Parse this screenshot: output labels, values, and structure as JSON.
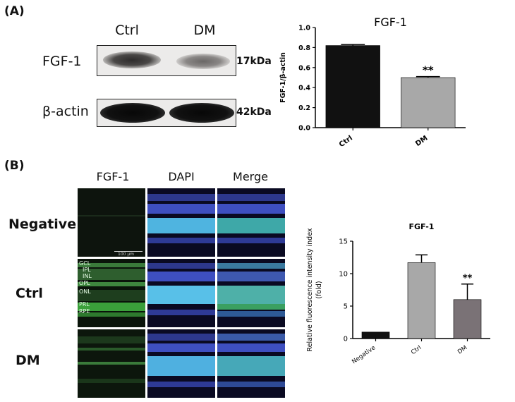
{
  "panel_a_label": "(A)",
  "panel_b_label": "(B)",
  "western_blot": {
    "lane_labels": [
      "Ctrl",
      "DM"
    ],
    "rows": [
      {
        "label": "FGF-1",
        "size": "17kDa"
      },
      {
        "label": "β-actin",
        "size": "42kDa"
      }
    ]
  },
  "immunofluorescence": {
    "column_headers": [
      "FGF-1",
      "DAPI",
      "Merge"
    ],
    "row_labels": [
      "Negative",
      "Ctrl",
      "DM"
    ],
    "scale_bar": "100 μm",
    "layer_labels": [
      "GCL",
      "IPL",
      "INL",
      "OPL",
      "ONL",
      "PRL",
      "RPE"
    ]
  },
  "chart_data": [
    {
      "type": "bar",
      "title": "FGF-1",
      "ylabel": "FGF-1/β-actin",
      "categories": [
        "Ctrl",
        "DM"
      ],
      "values": [
        0.82,
        0.5
      ],
      "errors": [
        0.01,
        0.01
      ],
      "colors": [
        "#111111",
        "#a8a8a8"
      ],
      "significance": [
        "",
        "**"
      ],
      "ylim": [
        0,
        1.0
      ],
      "yticks": [
        "0.0",
        "0.2",
        "0.4",
        "0.6",
        "0.8",
        "1.0"
      ]
    },
    {
      "type": "bar",
      "title": "FGF-1",
      "ylabel": "Relative fluorescence intensity index (fold)",
      "categories": [
        "Negative",
        "Ctrl",
        "DM"
      ],
      "values": [
        1.0,
        11.7,
        6.0
      ],
      "errors": [
        0,
        1.2,
        2.4
      ],
      "colors": [
        "#111111",
        "#a8a8a8",
        "#7a7276"
      ],
      "significance": [
        "",
        "",
        "**"
      ],
      "ylim": [
        0,
        15
      ],
      "yticks": [
        "0",
        "5",
        "10",
        "15"
      ]
    }
  ]
}
